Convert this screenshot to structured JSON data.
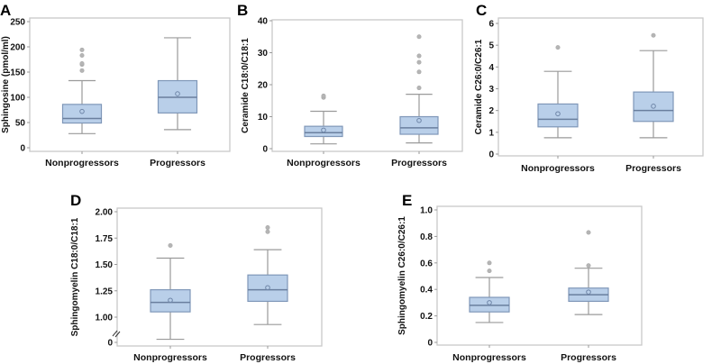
{
  "chart_data": [
    {
      "type": "box",
      "panel": "A",
      "ylabel": "Sphingosine  (pmol/ml)",
      "ylim": [
        0,
        250
      ],
      "yticks": [
        "0",
        "50",
        "100",
        "150",
        "200",
        "250"
      ],
      "categories": [
        "Nonprogressors",
        "Progressors"
      ],
      "boxes": [
        {
          "whisker_low": 28,
          "q1": 49,
          "median": 58,
          "q3": 86,
          "whisker_high": 133,
          "mean": 72,
          "outliers": [
            153,
            165,
            167,
            183,
            194
          ]
        },
        {
          "whisker_low": 36,
          "q1": 69,
          "median": 100,
          "q3": 133,
          "whisker_high": 218,
          "mean": 107,
          "outliers": []
        }
      ]
    },
    {
      "type": "box",
      "panel": "B",
      "ylabel": "Ceramide  C18:0/C18:1",
      "ylim": [
        0,
        40
      ],
      "yticks": [
        "0",
        "10",
        "20",
        "30",
        "40"
      ],
      "categories": [
        "Nonprogressors",
        "Progressors"
      ],
      "boxes": [
        {
          "whisker_low": 1.5,
          "q1": 3.8,
          "median": 5,
          "q3": 7,
          "whisker_high": 11.7,
          "mean": 5.8,
          "outliers": [
            16,
            16.5
          ]
        },
        {
          "whisker_low": 1.8,
          "q1": 4.5,
          "median": 6.5,
          "q3": 10,
          "whisker_high": 17,
          "mean": 8.8,
          "outliers": [
            19,
            24,
            27,
            29,
            35
          ]
        }
      ]
    },
    {
      "type": "box",
      "panel": "C",
      "ylabel": "Ceramide  C26:0/C26:1",
      "ylim": [
        0,
        6
      ],
      "yticks": [
        "0",
        "1",
        "2",
        "3",
        "4",
        "5",
        "6"
      ],
      "categories": [
        "Nonprogressors",
        "Progressors"
      ],
      "boxes": [
        {
          "whisker_low": 0.75,
          "q1": 1.25,
          "median": 1.6,
          "q3": 2.3,
          "whisker_high": 3.8,
          "mean": 1.85,
          "outliers": [
            4.9
          ]
        },
        {
          "whisker_low": 0.75,
          "q1": 1.5,
          "median": 2.0,
          "q3": 2.85,
          "whisker_high": 4.75,
          "mean": 2.2,
          "outliers": [
            5.45
          ]
        }
      ]
    },
    {
      "type": "box",
      "panel": "D",
      "ylabel": "Sphingomyelin  C18:0/C18:1",
      "ylim": [
        0,
        2.0
      ],
      "axis_break": true,
      "yticks": [
        "0",
        "1.00",
        "1.25",
        "1.50",
        "1.75",
        "2.00"
      ],
      "categories": [
        "Nonprogressors",
        "Progressors"
      ],
      "boxes": [
        {
          "whisker_low": 0.79,
          "q1": 1.05,
          "median": 1.14,
          "q3": 1.26,
          "whisker_high": 1.56,
          "mean": 1.16,
          "outliers": [
            1.68
          ]
        },
        {
          "whisker_low": 0.93,
          "q1": 1.15,
          "median": 1.26,
          "q3": 1.4,
          "whisker_high": 1.64,
          "mean": 1.28,
          "outliers": [
            1.81,
            1.85
          ]
        }
      ]
    },
    {
      "type": "box",
      "panel": "E",
      "ylabel": "Sphingomyelin  C26:0/C26:1",
      "ylim": [
        0,
        1.0
      ],
      "yticks": [
        "0",
        "0.2",
        "0.4",
        "0.6",
        "0.8",
        "1.0"
      ],
      "categories": [
        "Nonprogressors",
        "Progressors"
      ],
      "boxes": [
        {
          "whisker_low": 0.15,
          "q1": 0.23,
          "median": 0.28,
          "q3": 0.34,
          "whisker_high": 0.49,
          "mean": 0.3,
          "outliers": [
            0.54,
            0.6
          ]
        },
        {
          "whisker_low": 0.21,
          "q1": 0.31,
          "median": 0.36,
          "q3": 0.41,
          "whisker_high": 0.56,
          "mean": 0.38,
          "outliers": [
            0.58,
            0.83
          ]
        }
      ]
    }
  ],
  "colors": {
    "box_fill": "#b9cfe9",
    "box_stroke": "#7f97b8",
    "median": "#6a7f9e",
    "whisker": "#9a9a9a",
    "outlier": "#b5b5b5",
    "frame": "#c8c8c8"
  }
}
